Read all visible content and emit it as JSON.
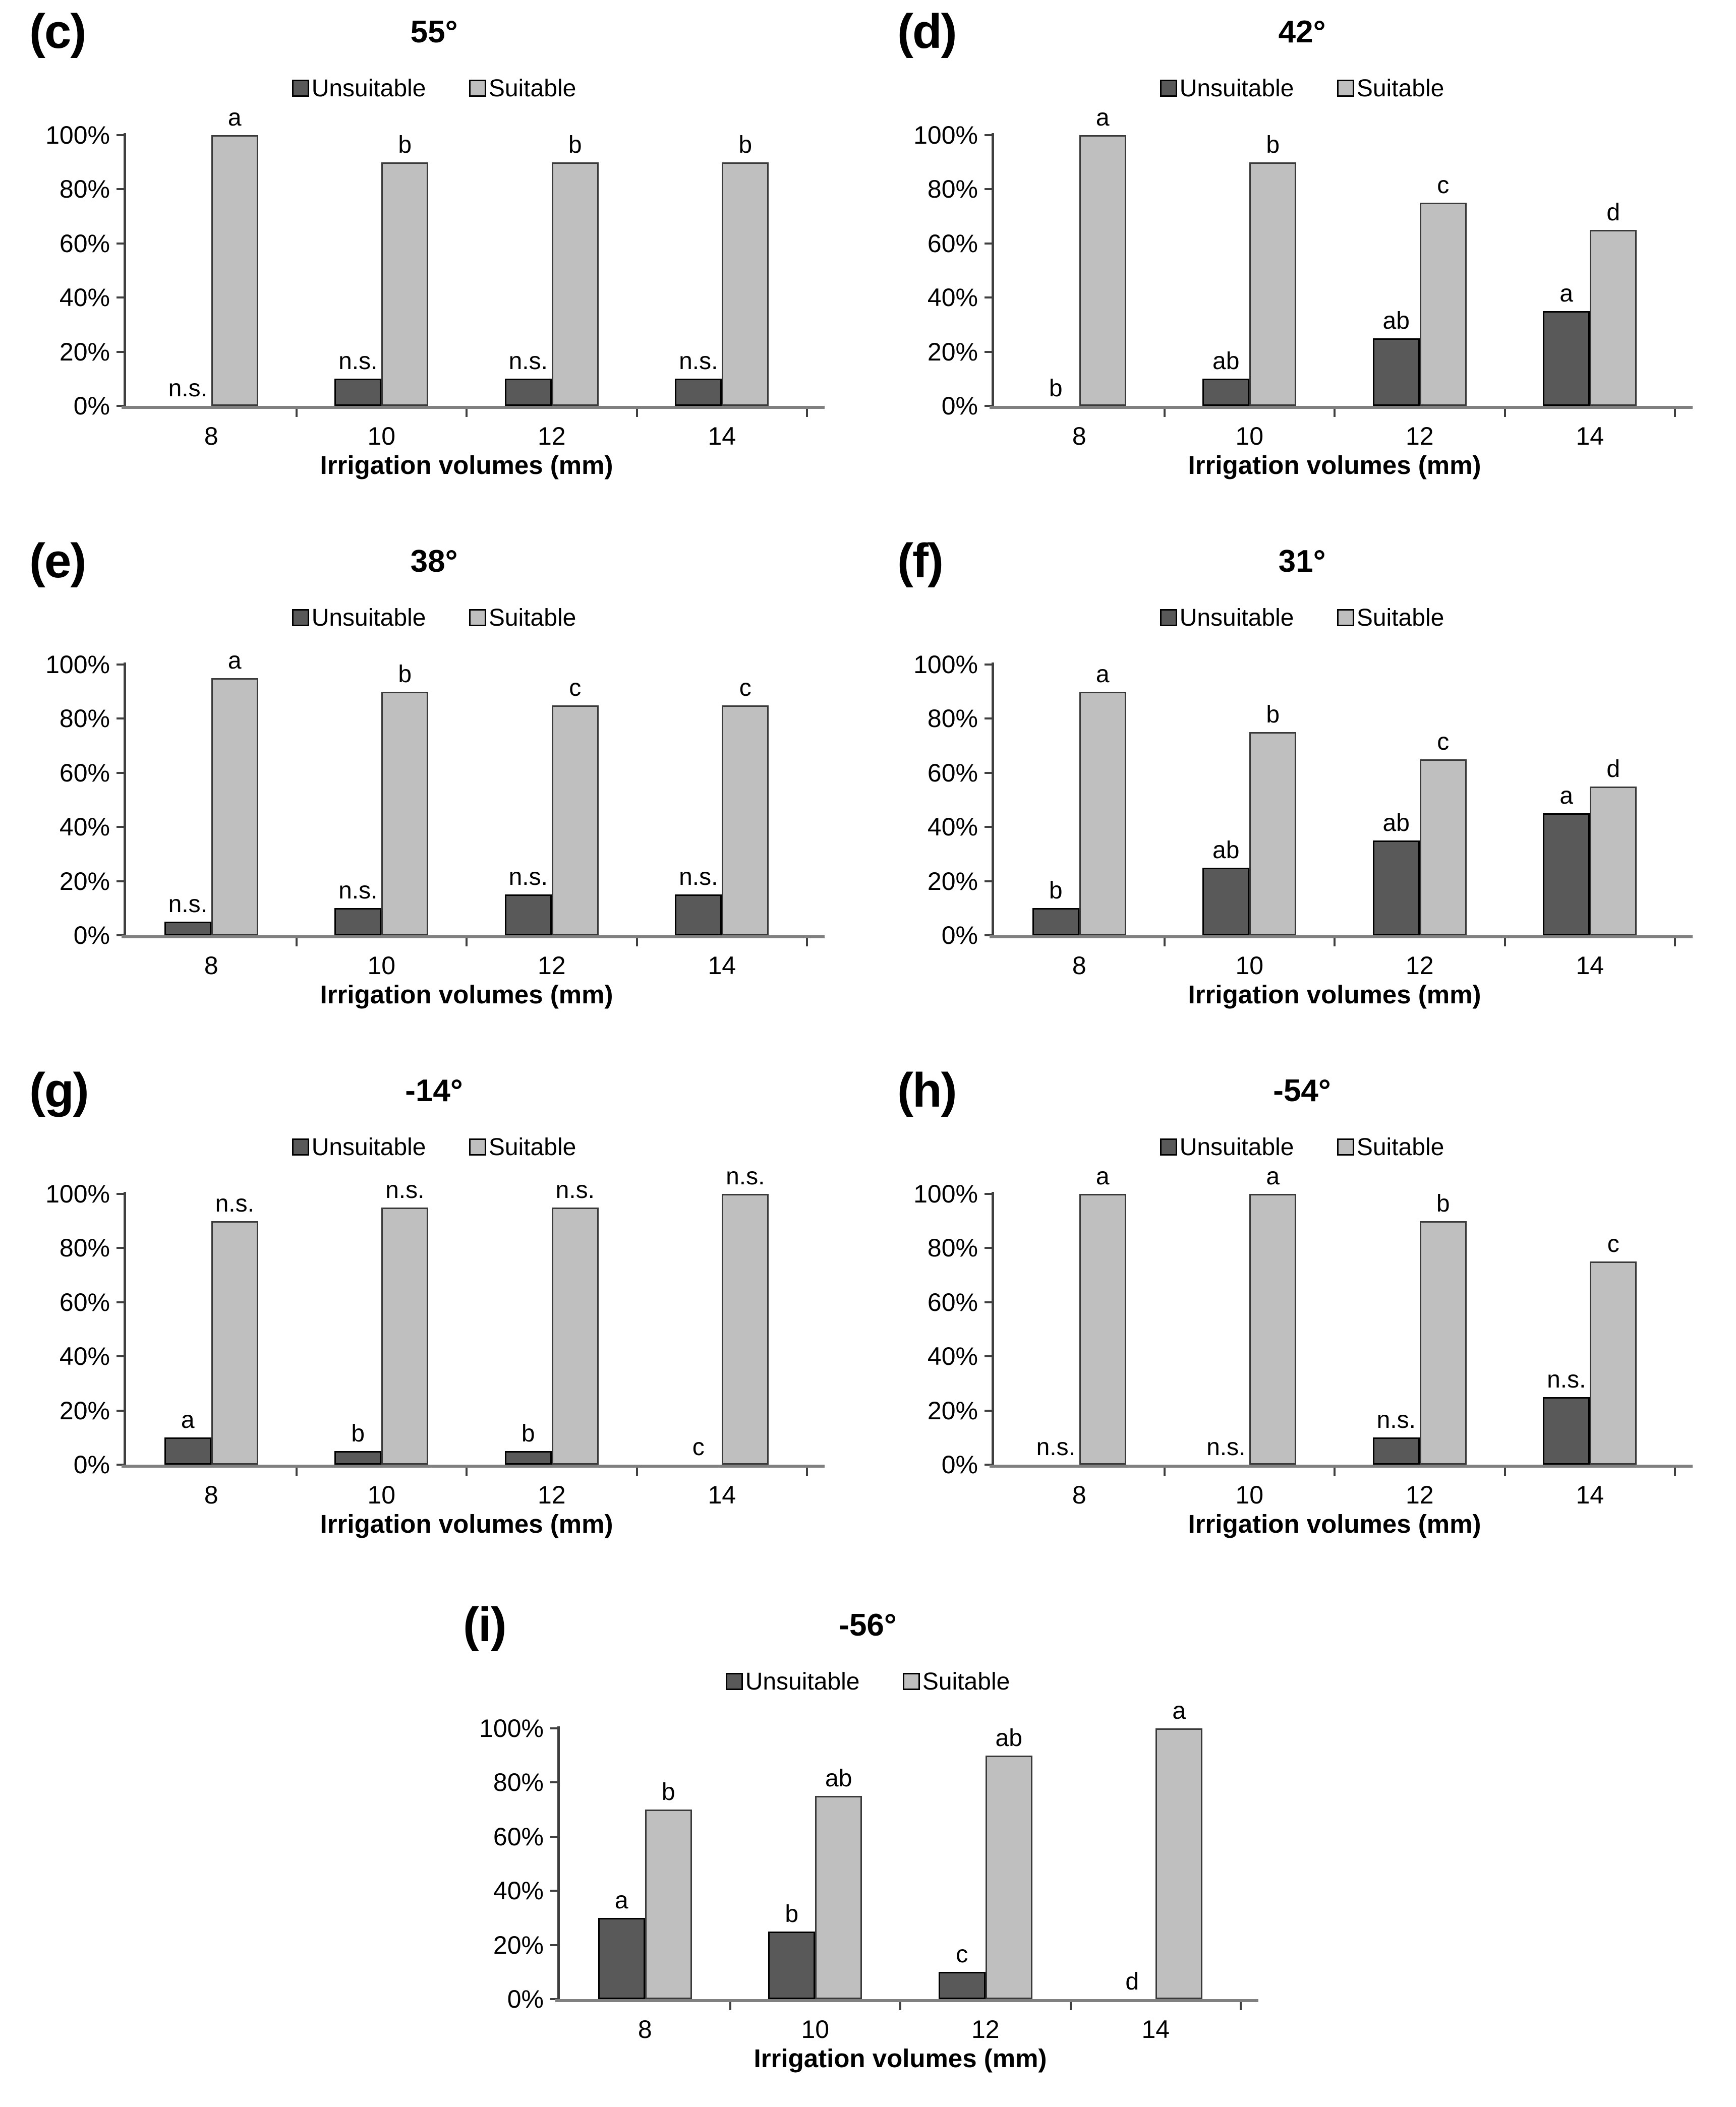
{
  "figure": {
    "colors": {
      "unsuitable_fill": "#595959",
      "suitable_fill": "#bfbfbf",
      "axis_line": "#3f3f3f",
      "baseline": "#808080"
    },
    "y_tick_labels": [
      "100%",
      "80%",
      "60%",
      "40%",
      "20%",
      "0%"
    ],
    "x_axis_title": "Irrigation volumes (mm)",
    "legend_labels": [
      "Unsuitable",
      "Suitable"
    ],
    "legend_position": "top"
  },
  "chart_data": [
    {
      "type": "bar",
      "panel_label": "(c)",
      "title": "55°",
      "categories": [
        "8",
        "10",
        "12",
        "14"
      ],
      "ylim": [
        0,
        100
      ],
      "xlabel": "Irrigation volumes (mm)",
      "series": [
        {
          "name": "Unsuitable",
          "color": "#595959",
          "values": [
            0,
            10,
            10,
            10
          ],
          "sig_labels": [
            "n.s.",
            "n.s.",
            "n.s.",
            "n.s."
          ]
        },
        {
          "name": "Suitable",
          "color": "#bfbfbf",
          "values": [
            100,
            90,
            90,
            90
          ],
          "sig_labels": [
            "a",
            "b",
            "b",
            "b"
          ]
        }
      ]
    },
    {
      "type": "bar",
      "panel_label": "(d)",
      "title": "42°",
      "categories": [
        "8",
        "10",
        "12",
        "14"
      ],
      "ylim": [
        0,
        100
      ],
      "xlabel": "Irrigation volumes (mm)",
      "series": [
        {
          "name": "Unsuitable",
          "color": "#595959",
          "values": [
            0,
            10,
            25,
            35
          ],
          "sig_labels": [
            "b",
            "ab",
            "ab",
            "a"
          ]
        },
        {
          "name": "Suitable",
          "color": "#bfbfbf",
          "values": [
            100,
            90,
            75,
            65
          ],
          "sig_labels": [
            "a",
            "b",
            "c",
            "d"
          ]
        }
      ]
    },
    {
      "type": "bar",
      "panel_label": "(e)",
      "title": "38°",
      "categories": [
        "8",
        "10",
        "12",
        "14"
      ],
      "ylim": [
        0,
        100
      ],
      "xlabel": "Irrigation volumes (mm)",
      "series": [
        {
          "name": "Unsuitable",
          "color": "#595959",
          "values": [
            5,
            10,
            15,
            15
          ],
          "sig_labels": [
            "n.s.",
            "n.s.",
            "n.s.",
            "n.s."
          ]
        },
        {
          "name": "Suitable",
          "color": "#bfbfbf",
          "values": [
            95,
            90,
            85,
            85
          ],
          "sig_labels": [
            "a",
            "b",
            "c",
            "c"
          ]
        }
      ]
    },
    {
      "type": "bar",
      "panel_label": "(f)",
      "title": "31°",
      "categories": [
        "8",
        "10",
        "12",
        "14"
      ],
      "ylim": [
        0,
        100
      ],
      "xlabel": "Irrigation volumes (mm)",
      "series": [
        {
          "name": "Unsuitable",
          "color": "#595959",
          "values": [
            10,
            25,
            35,
            45
          ],
          "sig_labels": [
            "b",
            "ab",
            "ab",
            "a"
          ]
        },
        {
          "name": "Suitable",
          "color": "#bfbfbf",
          "values": [
            90,
            75,
            65,
            55
          ],
          "sig_labels": [
            "a",
            "b",
            "c",
            "d"
          ]
        }
      ]
    },
    {
      "type": "bar",
      "panel_label": "(g)",
      "title": "-14°",
      "categories": [
        "8",
        "10",
        "12",
        "14"
      ],
      "ylim": [
        0,
        100
      ],
      "xlabel": "Irrigation volumes (mm)",
      "series": [
        {
          "name": "Unsuitable",
          "color": "#595959",
          "values": [
            10,
            5,
            5,
            0
          ],
          "sig_labels": [
            "a",
            "b",
            "b",
            "c"
          ]
        },
        {
          "name": "Suitable",
          "color": "#bfbfbf",
          "values": [
            90,
            95,
            95,
            100
          ],
          "sig_labels": [
            "n.s.",
            "n.s.",
            "n.s.",
            "n.s."
          ]
        }
      ]
    },
    {
      "type": "bar",
      "panel_label": "(h)",
      "title": "-54°",
      "categories": [
        "8",
        "10",
        "12",
        "14"
      ],
      "ylim": [
        0,
        100
      ],
      "xlabel": "Irrigation volumes (mm)",
      "series": [
        {
          "name": "Unsuitable",
          "color": "#595959",
          "values": [
            0,
            0,
            10,
            25
          ],
          "sig_labels": [
            "n.s.",
            "n.s.",
            "n.s.",
            "n.s."
          ]
        },
        {
          "name": "Suitable",
          "color": "#bfbfbf",
          "values": [
            100,
            100,
            90,
            75
          ],
          "sig_labels": [
            "a",
            "a",
            "b",
            "c"
          ]
        }
      ]
    },
    {
      "type": "bar",
      "panel_label": "(i)",
      "title": "-56°",
      "categories": [
        "8",
        "10",
        "12",
        "14"
      ],
      "ylim": [
        0,
        100
      ],
      "xlabel": "Irrigation volumes (mm)",
      "series": [
        {
          "name": "Unsuitable",
          "color": "#595959",
          "values": [
            30,
            25,
            10,
            0
          ],
          "sig_labels": [
            "a",
            "b",
            "c",
            "d"
          ]
        },
        {
          "name": "Suitable",
          "color": "#bfbfbf",
          "values": [
            70,
            75,
            90,
            100
          ],
          "sig_labels": [
            "b",
            "ab",
            "ab",
            "a"
          ]
        }
      ]
    }
  ]
}
